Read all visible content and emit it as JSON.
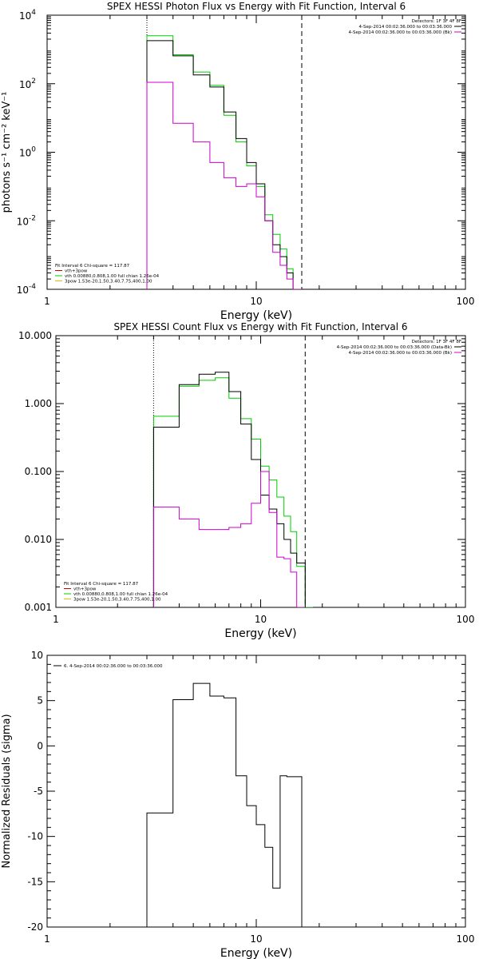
{
  "chart_data": [
    {
      "type": "line",
      "title": "SPEX HESSI Photon Flux vs Energy with Fit Function, Interval 6",
      "xlabel": "Energy (keV)",
      "ylabel": "photons s⁻¹ cm⁻² keV⁻¹",
      "xscale": "log",
      "yscale": "log",
      "xlim": [
        1,
        100
      ],
      "ylim": [
        0.0001,
        10000
      ],
      "xticks": [
        {
          "v": 1,
          "label": "1"
        },
        {
          "v": 10,
          "label": "10"
        },
        {
          "v": 100,
          "label": "100"
        }
      ],
      "yticks": [
        {
          "v": 0.0001,
          "base": "10",
          "exp": "-4"
        },
        {
          "v": 0.01,
          "base": "10",
          "exp": "-2"
        },
        {
          "v": 1,
          "base": "10",
          "exp": "0"
        },
        {
          "v": 100,
          "base": "10",
          "exp": "2"
        },
        {
          "v": 10000,
          "base": "10",
          "exp": "4"
        }
      ],
      "vlines": [
        {
          "x": 3.0,
          "style": "dotted"
        },
        {
          "x": 16.5,
          "style": "dashed"
        }
      ],
      "legend_placement": "top-right",
      "legend": {
        "header": "Detectors: 1F 3F 4F 8F",
        "entries": [
          {
            "label": "4-Sep-2014 00:02:36.000 to 00:03:36.000",
            "color": "#000000"
          },
          {
            "label": "4-Sep-2014 00:02:36.000 to 00:03:36.000 (Bk)",
            "color": "#cc00cc"
          }
        ]
      },
      "fit_info": {
        "header": "Fit Interval 6   Chi-square = 117.87",
        "entries": [
          {
            "label": "vth+3pow",
            "color": "#cc0000"
          },
          {
            "label": "vth 0.00880,0.808,1.00  full chian 1.26e-04",
            "color": "#00cc00"
          },
          {
            "label": "3pow 1.53e-20,1.50,3.40,7.75,400,1.00",
            "color": "#e0c000"
          }
        ]
      },
      "series": [
        {
          "color": "#00cc00",
          "edges": [
            3,
            4,
            5,
            6,
            7,
            8,
            9,
            10,
            11,
            12,
            13,
            14,
            15,
            16.5
          ],
          "values": [
            2500,
            700,
            220,
            90,
            12,
            2.0,
            0.4,
            0.1,
            0.015,
            0.004,
            0.0015,
            0.0004,
            0.0001
          ]
        },
        {
          "color": "#000000",
          "edges": [
            3,
            4,
            5,
            6,
            7,
            8,
            9,
            10,
            11,
            12,
            13,
            14,
            15,
            16.5
          ],
          "values": [
            1800,
            650,
            180,
            80,
            15,
            2.5,
            0.5,
            0.12,
            0.01,
            0.002,
            0.0009,
            0.0003,
            0.0001
          ]
        },
        {
          "color": "#cc00cc",
          "edges": [
            3,
            4,
            5,
            6,
            7,
            8,
            9,
            10,
            11,
            12,
            13,
            14,
            15,
            16.5
          ],
          "values": [
            110,
            7,
            2,
            0.5,
            0.18,
            0.1,
            0.12,
            0.05,
            0.01,
            0.0012,
            0.0005,
            0.0002,
            0.0001
          ]
        }
      ]
    },
    {
      "type": "line",
      "title": "SPEX HESSI Count Flux vs Energy with Fit Function, Interval 6",
      "xlabel": "Energy (keV)",
      "ylabel": "",
      "xscale": "log",
      "yscale": "log",
      "xlim": [
        1,
        100
      ],
      "ylim": [
        0.001,
        10
      ],
      "xticks": [
        {
          "v": 1,
          "label": "1"
        },
        {
          "v": 10,
          "label": "10"
        },
        {
          "v": 100,
          "label": "100"
        }
      ],
      "yticks": [
        {
          "v": 0.001,
          "label": "0.001"
        },
        {
          "v": 0.01,
          "label": "0.010"
        },
        {
          "v": 0.1,
          "label": "0.100"
        },
        {
          "v": 1,
          "label": "1.000"
        },
        {
          "v": 10,
          "label": "10.000"
        }
      ],
      "vlines": [
        {
          "x": 3.0,
          "style": "dotted"
        },
        {
          "x": 16.5,
          "style": "dashed"
        }
      ],
      "legend_placement": "top-right",
      "legend": {
        "header": "Detectors: 1F 3F 4F 8F",
        "entries": [
          {
            "label": "4-Sep-2014 00:02:36.000 to 00:03:36.000 (Data-Bk)",
            "color": "#000000"
          },
          {
            "label": "4-Sep-2014 00:02:36.000 to 00:03:36.000 (Bk)",
            "color": "#cc00cc"
          }
        ]
      },
      "fit_info": {
        "header": "Fit Interval 6   Chi-square = 117.87",
        "entries": [
          {
            "label": "vth+3pow",
            "color": "#cc0000"
          },
          {
            "label": "vth 0.00880,0.808,1.00  full chian 1.26e-04",
            "color": "#00cc00"
          },
          {
            "label": "3pow 1.53e-20,1.50,3.40,7.75,400,1.00",
            "color": "#e0c000"
          }
        ]
      },
      "series": [
        {
          "color": "#00cc00",
          "edges": [
            3,
            4,
            5,
            6,
            7,
            8,
            9,
            10,
            11,
            12,
            13,
            14,
            15,
            16.5,
            18
          ],
          "values": [
            0.65,
            1.8,
            2.2,
            2.4,
            1.2,
            0.6,
            0.3,
            0.12,
            0.075,
            0.042,
            0.022,
            0.013,
            0.004,
            0.0005
          ]
        },
        {
          "color": "#000000",
          "edges": [
            3,
            4,
            5,
            6,
            7,
            8,
            9,
            10,
            11,
            12,
            13,
            14,
            15,
            16.5
          ],
          "values": [
            0.45,
            1.9,
            2.7,
            2.9,
            1.5,
            0.5,
            0.15,
            0.045,
            0.028,
            0.017,
            0.01,
            0.0063,
            0.0045
          ]
        },
        {
          "color": "#cc00cc",
          "edges": [
            3,
            4,
            5,
            6,
            7,
            8,
            9,
            10,
            11,
            12,
            13,
            14,
            15,
            16.5
          ],
          "values": [
            0.03,
            0.02,
            0.014,
            0.014,
            0.015,
            0.017,
            0.034,
            0.1,
            0.025,
            0.0055,
            0.0052,
            0.0033,
            0.0005
          ]
        }
      ]
    },
    {
      "type": "line",
      "title": "",
      "xlabel": "Energy (keV)",
      "ylabel": "Normalized Residuals (sigma)",
      "xscale": "log",
      "yscale": "linear",
      "xlim": [
        1,
        100
      ],
      "ylim": [
        -20,
        10
      ],
      "xticks": [
        {
          "v": 1,
          "label": "1"
        },
        {
          "v": 10,
          "label": "10"
        },
        {
          "v": 100,
          "label": "100"
        }
      ],
      "yticks": [
        {
          "v": -20,
          "label": "-20"
        },
        {
          "v": -15,
          "label": "-15"
        },
        {
          "v": -10,
          "label": "-10"
        },
        {
          "v": -5,
          "label": "-5"
        },
        {
          "v": 0,
          "label": "0"
        },
        {
          "v": 5,
          "label": "5"
        },
        {
          "v": 10,
          "label": "10"
        }
      ],
      "vlines": [],
      "legend_placement": "top-left",
      "legend": {
        "header": "",
        "entries": [
          {
            "label": "6.  4-Sep-2014 00:02:36.000 to 00:03:36.000",
            "color": "#000000"
          }
        ]
      },
      "fit_info": null,
      "series": [
        {
          "color": "#000000",
          "edges": [
            3,
            4,
            5,
            6,
            7,
            8,
            9,
            10,
            11,
            12,
            13,
            14,
            15,
            16.5
          ],
          "values": [
            -7.4,
            5.1,
            6.9,
            5.5,
            5.3,
            -3.3,
            -6.6,
            -8.7,
            -11.2,
            -15.7,
            -3.3,
            -3.4,
            -3.4
          ]
        }
      ]
    }
  ]
}
